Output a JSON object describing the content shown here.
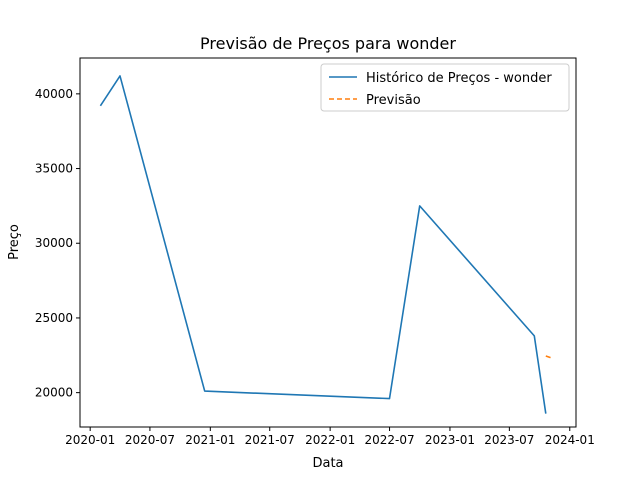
{
  "chart_data": {
    "type": "line",
    "title": "Previsão de Preços para wonder",
    "xlabel": "Data",
    "ylabel": "Preço",
    "x_ticks": [
      "2020-01",
      "2020-07",
      "2021-01",
      "2021-07",
      "2022-01",
      "2022-07",
      "2023-01",
      "2023-07",
      "2024-01"
    ],
    "y_ticks": [
      20000,
      25000,
      30000,
      35000,
      40000
    ],
    "xlim": [
      "2019-12-01",
      "2024-01-20"
    ],
    "ylim": [
      17700,
      42400
    ],
    "grid": false,
    "legend_position": "top-right",
    "series": [
      {
        "name": "Histórico de Preços - wonder",
        "color": "#1f77b4",
        "style": "solid",
        "points": [
          {
            "x": "2020-02-01",
            "y": 39200
          },
          {
            "x": "2020-04-01",
            "y": 41200
          },
          {
            "x": "2020-12-15",
            "y": 20100
          },
          {
            "x": "2022-07-01",
            "y": 19600
          },
          {
            "x": "2022-10-01",
            "y": 32500
          },
          {
            "x": "2023-09-15",
            "y": 23800
          },
          {
            "x": "2023-10-20",
            "y": 18600
          }
        ]
      },
      {
        "name": "Previsão",
        "color": "#ff7f0e",
        "style": "dashed",
        "points": [
          {
            "x": "2023-10-20",
            "y": 22450
          },
          {
            "x": "2023-11-10",
            "y": 22300
          }
        ]
      }
    ]
  }
}
